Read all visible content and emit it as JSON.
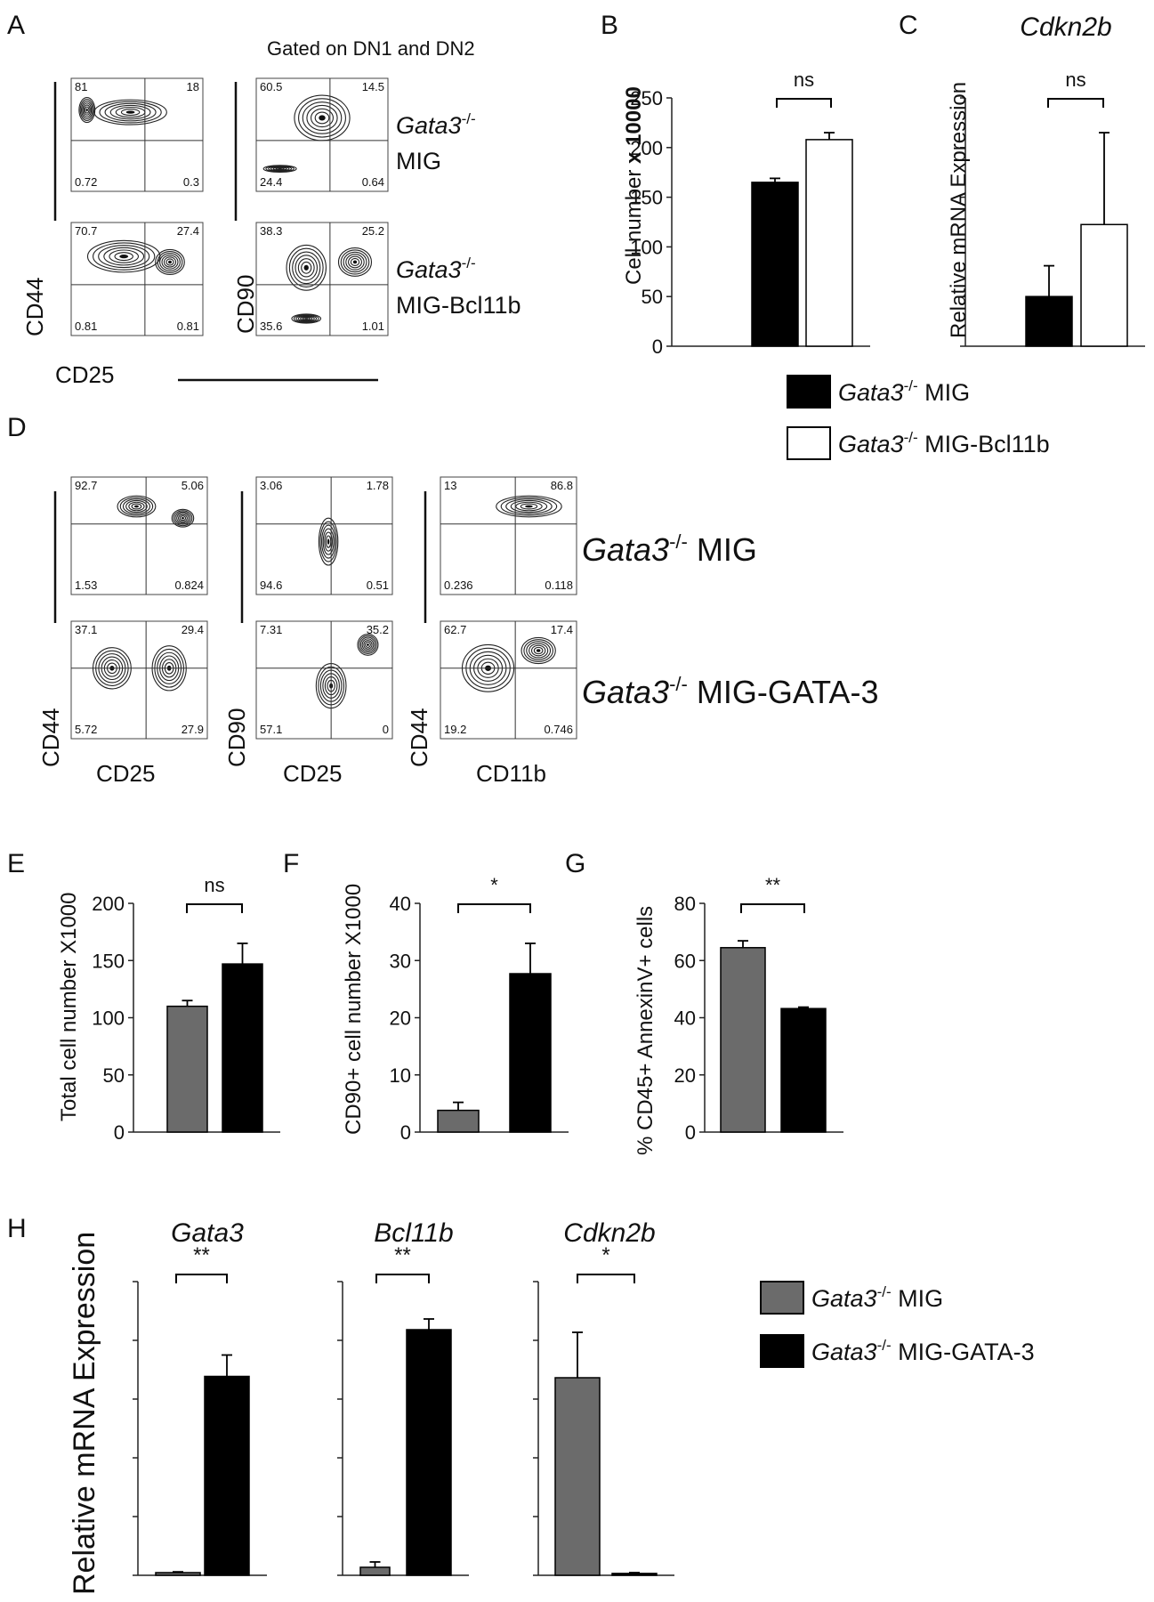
{
  "panel_letters": [
    "A",
    "B",
    "C",
    "D",
    "E",
    "F",
    "G",
    "H"
  ],
  "flow_a": {
    "header": "Gated on DN1 and DN2",
    "xlabel": "CD25",
    "ylabel_left": "CD44",
    "ylabel_right": "CD90",
    "rows": [
      {
        "gene": "Gata3",
        "sup": "-/-",
        "construct": "MIG"
      },
      {
        "gene": "Gata3",
        "sup": "-/-",
        "construct": "MIG-Bcl11b"
      }
    ],
    "plots": [
      {
        "q": [
          "81",
          "18",
          "0.72",
          "0.3"
        ]
      },
      {
        "q": [
          "60.5",
          "14.5",
          "24.4",
          "0.64"
        ]
      },
      {
        "q": [
          "70.7",
          "27.4",
          "0.81",
          "0.81"
        ]
      },
      {
        "q": [
          "38.3",
          "25.2",
          "35.6",
          "1.01"
        ]
      }
    ]
  },
  "flow_d": {
    "rows": [
      {
        "gene": "Gata3",
        "sup": "-/-",
        "construct": "MIG"
      },
      {
        "gene": "Gata3",
        "sup": "-/-",
        "construct": "MIG-GATA-3"
      }
    ],
    "columns": [
      {
        "xlabel": "CD25",
        "ylabel": "CD44"
      },
      {
        "xlabel": "CD25",
        "ylabel": "CD90"
      },
      {
        "xlabel": "CD11b",
        "ylabel": "CD44"
      }
    ],
    "plots": [
      {
        "q": [
          "92.7",
          "5.06",
          "1.53",
          "0.824"
        ]
      },
      {
        "q": [
          "3.06",
          "1.78",
          "94.6",
          "0.51"
        ]
      },
      {
        "q": [
          "13",
          "86.8",
          "0.236",
          "0.118"
        ]
      },
      {
        "q": [
          "37.1",
          "29.4",
          "5.72",
          "27.9"
        ]
      },
      {
        "q": [
          "7.31",
          "35.2",
          "57.1",
          "0"
        ]
      },
      {
        "q": [
          "62.7",
          "17.4",
          "19.2",
          "0.746"
        ]
      }
    ]
  },
  "legend_bc": [
    {
      "gene": "Gata3",
      "sup": "-/-",
      "construct": "MIG",
      "color": "#000000"
    },
    {
      "gene": "Gata3",
      "sup": "-/-",
      "construct": "MIG-Bcl11b",
      "color": "#ffffff"
    }
  ],
  "legend_h": [
    {
      "gene": "Gata3",
      "sup": "-/-",
      "construct": "MIG",
      "color": "#6b6b6b"
    },
    {
      "gene": "Gata3",
      "sup": "-/-",
      "construct": "MIG-GATA-3",
      "color": "#000000"
    }
  ],
  "chart_data": [
    {
      "panel": "B",
      "type": "bar",
      "ylabel": "Cell number",
      "ylabel_bold": "x 10000",
      "ylim": [
        0,
        250
      ],
      "yticks": [
        "0",
        "50",
        "100",
        "150",
        "200",
        "250"
      ],
      "values": [
        165,
        208
      ],
      "errors": [
        4,
        7
      ],
      "colors": [
        "#000000",
        "#ffffff"
      ],
      "sig": "ns"
    },
    {
      "panel": "C",
      "type": "bar",
      "title": "Cdkn2b",
      "ylabel": "Relative mRNA Expression",
      "ylim": [
        0,
        5
      ],
      "yticks": [
        "",
        "",
        "",
        "",
        "",
        ""
      ],
      "values": [
        1.0,
        2.45
      ],
      "errors": [
        0.62,
        1.85
      ],
      "colors": [
        "#000000",
        "#ffffff"
      ],
      "sig": "ns"
    },
    {
      "panel": "E",
      "type": "bar",
      "ylabel": "Total cell number  X1000",
      "ylim": [
        0,
        200
      ],
      "yticks": [
        "0",
        "50",
        "100",
        "150",
        "200"
      ],
      "values": [
        110,
        147
      ],
      "errors": [
        5,
        18
      ],
      "colors": [
        "#6b6b6b",
        "#000000"
      ],
      "sig": "ns"
    },
    {
      "panel": "F",
      "type": "bar",
      "ylabel": "CD90+ cell number  X1000",
      "ylim": [
        0,
        40
      ],
      "yticks": [
        "0",
        "10",
        "20",
        "30",
        "40"
      ],
      "values": [
        3.8,
        27.7
      ],
      "errors": [
        1.4,
        5.3
      ],
      "colors": [
        "#6b6b6b",
        "#000000"
      ],
      "sig": "*"
    },
    {
      "panel": "G",
      "type": "bar",
      "ylabel": "% CD45+ AnnexinV+ cells",
      "ylim": [
        0,
        80
      ],
      "yticks": [
        "0",
        "20",
        "40",
        "60",
        "80"
      ],
      "values": [
        64.5,
        43.2
      ],
      "errors": [
        2.4,
        0.5
      ],
      "colors": [
        "#6b6b6b",
        "#000000"
      ],
      "sig": "**"
    },
    {
      "panel": "H",
      "type": "bar",
      "title": "Gata3",
      "ylabel": "Relative mRNA Expression",
      "ylim": [
        0,
        1.1
      ],
      "values": [
        0.01,
        0.745
      ],
      "errors": [
        0.003,
        0.08
      ],
      "colors": [
        "#6b6b6b",
        "#000000"
      ],
      "sig": "**"
    },
    {
      "panel": "H",
      "type": "bar",
      "title": "Bcl11b",
      "ylim": [
        0,
        1.1
      ],
      "values": [
        0.03,
        0.92
      ],
      "errors": [
        0.02,
        0.04
      ],
      "colors": [
        "#6b6b6b",
        "#000000"
      ],
      "sig": "**"
    },
    {
      "panel": "H",
      "type": "bar",
      "title": "Cdkn2b",
      "ylim": [
        0,
        1.1
      ],
      "values": [
        0.74,
        0.007
      ],
      "errors": [
        0.17,
        0.003
      ],
      "colors": [
        "#6b6b6b",
        "#000000"
      ],
      "sig": "*"
    }
  ]
}
